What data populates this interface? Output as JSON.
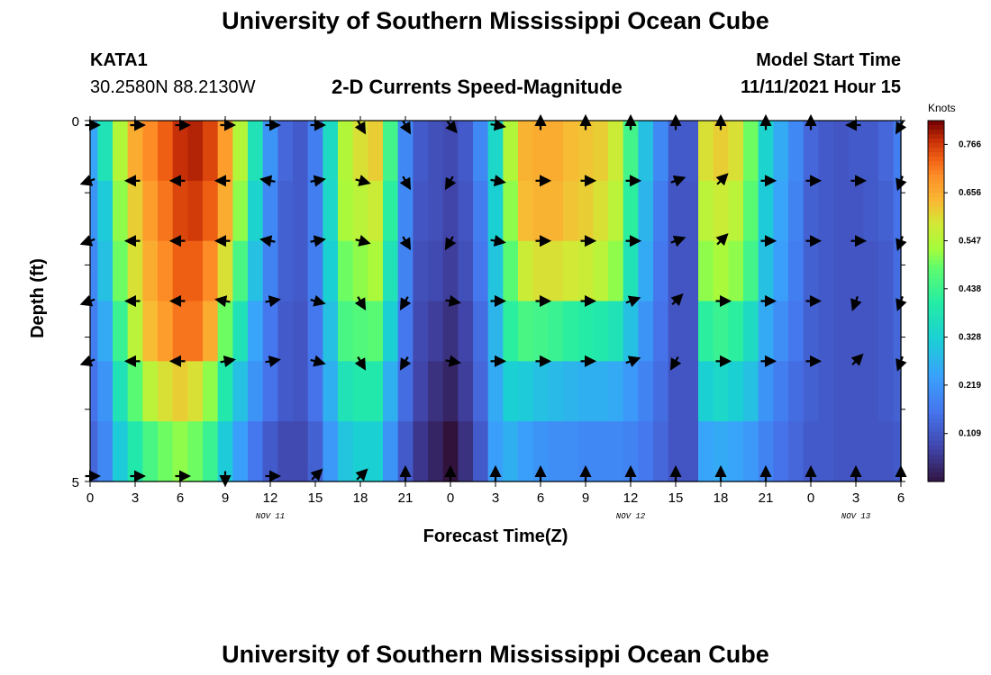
{
  "header": {
    "title": "University of Southern Mississippi Ocean Cube",
    "station_id": "KATA1",
    "coordinates": "30.2580N  88.2130W",
    "subtitle": "2-D Currents Speed-Magnitude",
    "model_label": "Model Start Time",
    "model_time": "11/11/2021 Hour 15"
  },
  "footer": {
    "title": "University of Southern Mississippi Ocean Cube"
  },
  "chart_data": {
    "type": "heatmap",
    "xlabel": "Forecast Time(Z)",
    "ylabel": "Depth (ft)",
    "x_tick_labels": [
      "0",
      "3",
      "6",
      "9",
      "12",
      "15",
      "18",
      "21",
      "0",
      "3",
      "6",
      "9",
      "12",
      "15",
      "18",
      "21",
      "0",
      "3",
      "6"
    ],
    "y_tick_labels": [
      "0",
      "5"
    ],
    "y_range": [
      0,
      5
    ],
    "date_labels": [
      {
        "text": "NOV 11",
        "hour": 12
      },
      {
        "text": "NOV 12",
        "hour": 36
      },
      {
        "text": "NOV 13",
        "hour": 51
      }
    ],
    "colorbar": {
      "title": "Knots",
      "ticks": [
        "0.766",
        "0.656",
        "0.547",
        "0.438",
        "0.328",
        "0.219",
        "0.109"
      ],
      "min": 0.0,
      "max": 0.82
    },
    "depth_rows": [
      0,
      1,
      2,
      3,
      4,
      5
    ],
    "hours": [
      0,
      1,
      2,
      3,
      4,
      5,
      6,
      7,
      8,
      9,
      10,
      11,
      12,
      13,
      14,
      15,
      16,
      17,
      18,
      19,
      20,
      21,
      22,
      23,
      24,
      25,
      26,
      27,
      28,
      29,
      30,
      31,
      32,
      33,
      34,
      35,
      36,
      37,
      38,
      39,
      40,
      41,
      42,
      43,
      44,
      45,
      46,
      47,
      48,
      49,
      50,
      51,
      52,
      53,
      54
    ],
    "speed_knots": [
      [
        0.25,
        0.38,
        0.55,
        0.66,
        0.7,
        0.74,
        0.78,
        0.79,
        0.76,
        0.68,
        0.55,
        0.38,
        0.22,
        0.14,
        0.12,
        0.18,
        0.36,
        0.55,
        0.6,
        0.62,
        0.45,
        0.2,
        0.12,
        0.1,
        0.09,
        0.12,
        0.2,
        0.35,
        0.55,
        0.65,
        0.66,
        0.66,
        0.64,
        0.63,
        0.62,
        0.58,
        0.45,
        0.3,
        0.2,
        0.12,
        0.12,
        0.6,
        0.62,
        0.6,
        0.5,
        0.34,
        0.26,
        0.2,
        0.14,
        0.12,
        0.11,
        0.12,
        0.12,
        0.14,
        0.18
      ],
      [
        0.22,
        0.32,
        0.52,
        0.62,
        0.68,
        0.72,
        0.76,
        0.77,
        0.74,
        0.66,
        0.52,
        0.34,
        0.2,
        0.13,
        0.12,
        0.18,
        0.35,
        0.54,
        0.56,
        0.58,
        0.42,
        0.2,
        0.11,
        0.1,
        0.08,
        0.11,
        0.18,
        0.33,
        0.52,
        0.64,
        0.65,
        0.65,
        0.63,
        0.62,
        0.6,
        0.56,
        0.42,
        0.28,
        0.18,
        0.11,
        0.11,
        0.56,
        0.58,
        0.56,
        0.48,
        0.32,
        0.25,
        0.19,
        0.13,
        0.12,
        0.11,
        0.11,
        0.12,
        0.13,
        0.16
      ],
      [
        0.2,
        0.3,
        0.5,
        0.6,
        0.66,
        0.7,
        0.74,
        0.74,
        0.7,
        0.6,
        0.46,
        0.3,
        0.19,
        0.13,
        0.12,
        0.18,
        0.33,
        0.5,
        0.52,
        0.54,
        0.38,
        0.19,
        0.1,
        0.09,
        0.07,
        0.1,
        0.17,
        0.31,
        0.48,
        0.58,
        0.6,
        0.6,
        0.59,
        0.58,
        0.56,
        0.52,
        0.38,
        0.26,
        0.17,
        0.11,
        0.11,
        0.52,
        0.54,
        0.52,
        0.45,
        0.3,
        0.24,
        0.18,
        0.13,
        0.12,
        0.11,
        0.11,
        0.11,
        0.12,
        0.15
      ],
      [
        0.18,
        0.26,
        0.44,
        0.56,
        0.64,
        0.68,
        0.72,
        0.72,
        0.66,
        0.5,
        0.38,
        0.25,
        0.17,
        0.12,
        0.11,
        0.17,
        0.3,
        0.46,
        0.47,
        0.48,
        0.33,
        0.17,
        0.09,
        0.07,
        0.05,
        0.08,
        0.15,
        0.28,
        0.42,
        0.46,
        0.45,
        0.44,
        0.42,
        0.41,
        0.4,
        0.38,
        0.3,
        0.22,
        0.16,
        0.11,
        0.11,
        0.42,
        0.44,
        0.42,
        0.36,
        0.26,
        0.21,
        0.17,
        0.13,
        0.12,
        0.11,
        0.11,
        0.11,
        0.12,
        0.14
      ],
      [
        0.16,
        0.22,
        0.38,
        0.48,
        0.56,
        0.6,
        0.62,
        0.6,
        0.52,
        0.4,
        0.3,
        0.22,
        0.16,
        0.12,
        0.11,
        0.16,
        0.27,
        0.38,
        0.4,
        0.4,
        0.27,
        0.15,
        0.08,
        0.05,
        0.03,
        0.07,
        0.14,
        0.26,
        0.33,
        0.32,
        0.3,
        0.29,
        0.28,
        0.27,
        0.27,
        0.26,
        0.23,
        0.19,
        0.15,
        0.11,
        0.11,
        0.33,
        0.35,
        0.33,
        0.3,
        0.22,
        0.18,
        0.15,
        0.13,
        0.12,
        0.11,
        0.11,
        0.11,
        0.12,
        0.13
      ],
      [
        0.14,
        0.2,
        0.32,
        0.4,
        0.46,
        0.5,
        0.52,
        0.5,
        0.44,
        0.32,
        0.24,
        0.17,
        0.12,
        0.09,
        0.09,
        0.13,
        0.23,
        0.31,
        0.33,
        0.33,
        0.22,
        0.12,
        0.06,
        0.03,
        0.0,
        0.05,
        0.12,
        0.24,
        0.27,
        0.24,
        0.22,
        0.21,
        0.21,
        0.2,
        0.2,
        0.2,
        0.19,
        0.17,
        0.14,
        0.11,
        0.11,
        0.25,
        0.26,
        0.25,
        0.23,
        0.19,
        0.16,
        0.14,
        0.12,
        0.12,
        0.11,
        0.11,
        0.11,
        0.11,
        0.12
      ]
    ],
    "arrow_hours": [
      0,
      3,
      6,
      9,
      12,
      15,
      18,
      21,
      24,
      27,
      30,
      33,
      36,
      39,
      42,
      45,
      48,
      51,
      54
    ],
    "arrow_direction_deg": [
      [
        0,
        0,
        0,
        0,
        0,
        0,
        300,
        300,
        310,
        350,
        90,
        90,
        90,
        90,
        90,
        90,
        90,
        180,
        240
      ],
      [
        200,
        180,
        180,
        180,
        170,
        10,
        345,
        300,
        240,
        350,
        0,
        0,
        0,
        20,
        45,
        0,
        0,
        0,
        250
      ],
      [
        200,
        180,
        180,
        180,
        170,
        10,
        345,
        300,
        240,
        350,
        0,
        0,
        0,
        20,
        45,
        0,
        0,
        0,
        250
      ],
      [
        200,
        180,
        180,
        170,
        10,
        345,
        300,
        240,
        350,
        0,
        0,
        0,
        20,
        45,
        0,
        0,
        0,
        250,
        250
      ],
      [
        200,
        180,
        180,
        10,
        10,
        345,
        300,
        240,
        350,
        0,
        0,
        0,
        20,
        240,
        0,
        0,
        0,
        45,
        250
      ],
      [
        0,
        0,
        0,
        270,
        0,
        45,
        45,
        90,
        90,
        90,
        90,
        90,
        90,
        90,
        90,
        90,
        90,
        90,
        90
      ]
    ]
  }
}
